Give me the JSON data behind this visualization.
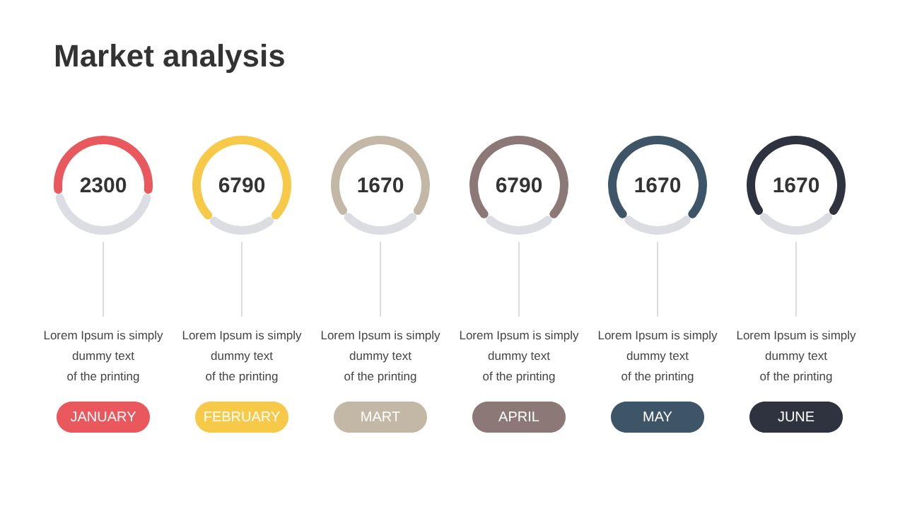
{
  "chart_data": [
    {
      "type": "other",
      "title": "Market analysis"
    },
    {
      "type": "donut",
      "xlabel": "JANUARY",
      "categories": [
        null,
        null
      ],
      "values": [
        56,
        44
      ],
      "colors": [
        "#e9585c",
        "#dcdde3"
      ],
      "annotations": [
        "2300",
        "Lorem Ipsum is simply",
        "dummy text",
        "of the printing"
      ]
    },
    {
      "type": "donut",
      "xlabel": "FEBRUARY",
      "categories": [
        null,
        null
      ],
      "values": [
        76,
        24
      ],
      "colors": [
        "#f7c948",
        "#dcdde3"
      ],
      "annotations": [
        "6790",
        "Lorem Ipsum is simply",
        "dummy text",
        "of the printing"
      ]
    },
    {
      "type": "donut",
      "xlabel": "MART",
      "categories": [
        null,
        null
      ],
      "values": [
        72,
        28
      ],
      "colors": [
        "#c3b8a5",
        "#dcdde3"
      ],
      "annotations": [
        "1670",
        "Lorem Ipsum is simply",
        "dummy text",
        "of the printing"
      ]
    },
    {
      "type": "donut",
      "xlabel": "APRIL",
      "categories": [
        null,
        null
      ],
      "values": [
        75,
        25
      ],
      "colors": [
        "#8b7877",
        "#dcdde3"
      ],
      "annotations": [
        "6790",
        "Lorem Ipsum is simply",
        "dummy text",
        "of the printing"
      ]
    },
    {
      "type": "donut",
      "xlabel": "MAY",
      "categories": [
        null,
        null
      ],
      "values": [
        75,
        25
      ],
      "colors": [
        "#3d5566",
        "#dcdde3"
      ],
      "annotations": [
        "1670",
        "Lorem Ipsum is simply",
        "dummy text",
        "of the printing"
      ]
    },
    {
      "type": "donut",
      "xlabel": "JUNE",
      "categories": [
        null,
        null
      ],
      "values": [
        72,
        28
      ],
      "colors": [
        "#2f3340",
        "#dcdde3"
      ],
      "annotations": [
        "1670",
        "Lorem Ipsum is simply",
        "dummy text",
        "of the printing"
      ]
    }
  ]
}
